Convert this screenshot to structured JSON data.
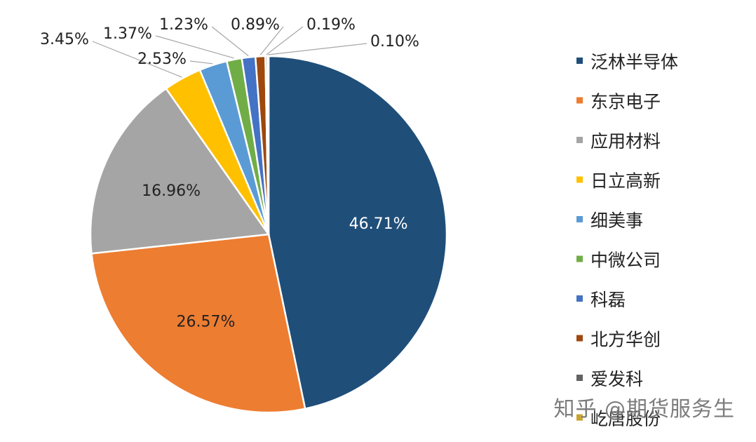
{
  "chart_data": {
    "type": "pie",
    "title": "",
    "series": [
      {
        "name": "泛林半导体",
        "value": 46.71,
        "label": "46.71%",
        "color": "#1f4e79"
      },
      {
        "name": "东京电子",
        "value": 26.57,
        "label": "26.57%",
        "color": "#ed7d31"
      },
      {
        "name": "应用材料",
        "value": 16.96,
        "label": "16.96%",
        "color": "#a5a5a5"
      },
      {
        "name": "日立高新",
        "value": 3.45,
        "label": "3.45%",
        "color": "#ffc000"
      },
      {
        "name": "细美事",
        "value": 2.53,
        "label": "2.53%",
        "color": "#5b9bd5"
      },
      {
        "name": "中微公司",
        "value": 1.37,
        "label": "1.37%",
        "color": "#70ad47"
      },
      {
        "name": "科磊",
        "value": 1.23,
        "label": "1.23%",
        "color": "#4472c4"
      },
      {
        "name": "北方华创",
        "value": 0.89,
        "label": "0.89%",
        "color": "#9e480e"
      },
      {
        "name": "爱发科",
        "value": 0.19,
        "label": "0.19%",
        "color": "#636363"
      },
      {
        "name": "屹唐股份",
        "value": 0.1,
        "label": "0.10%",
        "color": "#c9a227"
      }
    ],
    "legend_position": "right"
  },
  "watermark": {
    "text": "知乎 @期货服务生"
  }
}
